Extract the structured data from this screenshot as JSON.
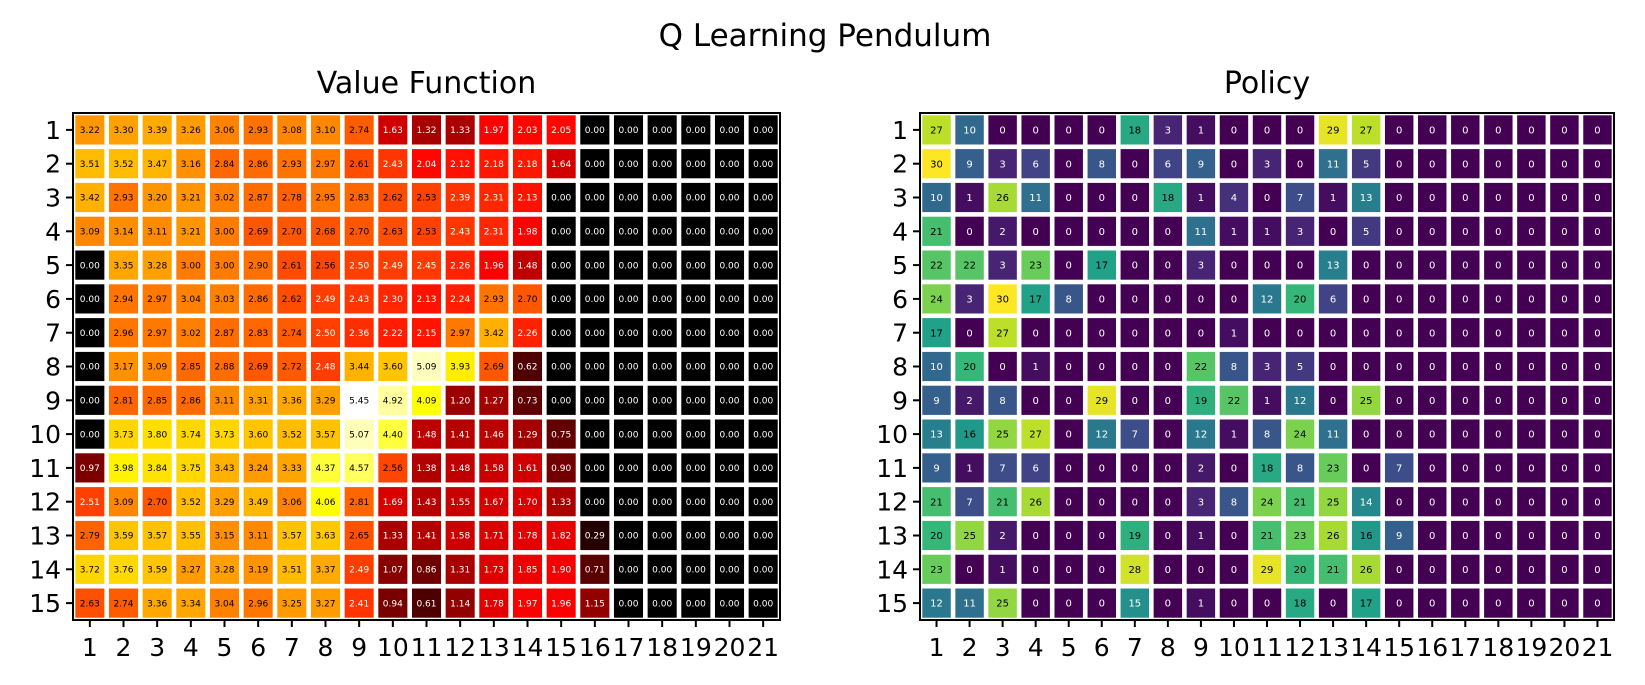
{
  "figure_title": "Q Learning Pendulum",
  "chart_data": [
    {
      "type": "heatmap",
      "title": "Value Function",
      "colormap": "hot",
      "x_tick_labels": [
        "1",
        "2",
        "3",
        "4",
        "5",
        "6",
        "7",
        "8",
        "9",
        "10",
        "11",
        "12",
        "13",
        "14",
        "15",
        "16",
        "17",
        "18",
        "19",
        "20",
        "21"
      ],
      "y_tick_labels": [
        "1",
        "2",
        "3",
        "4",
        "5",
        "6",
        "7",
        "8",
        "9",
        "10",
        "11",
        "12",
        "13",
        "14",
        "15"
      ],
      "value_range": [
        0,
        5.45
      ],
      "cell_label_format": "2dp",
      "values": [
        [
          3.22,
          3.3,
          3.39,
          3.26,
          3.06,
          2.93,
          3.08,
          3.1,
          2.74,
          1.63,
          1.32,
          1.33,
          1.97,
          2.03,
          2.05,
          0,
          0,
          0,
          0,
          0,
          0
        ],
        [
          3.51,
          3.52,
          3.47,
          3.16,
          2.84,
          2.86,
          2.93,
          2.97,
          2.61,
          2.43,
          2.04,
          2.12,
          2.18,
          2.18,
          1.64,
          0,
          0,
          0,
          0,
          0,
          0
        ],
        [
          3.42,
          2.93,
          3.2,
          3.21,
          3.02,
          2.87,
          2.78,
          2.95,
          2.83,
          2.62,
          2.53,
          2.39,
          2.31,
          2.13,
          0,
          0,
          0,
          0,
          0,
          0,
          0
        ],
        [
          3.09,
          3.14,
          3.11,
          3.21,
          3.0,
          2.69,
          2.7,
          2.68,
          2.7,
          2.63,
          2.53,
          2.43,
          2.31,
          1.98,
          0,
          0,
          0,
          0,
          0,
          0,
          0
        ],
        [
          0,
          3.35,
          3.28,
          3.0,
          3.0,
          2.9,
          2.61,
          2.56,
          2.5,
          2.49,
          2.45,
          2.26,
          1.96,
          1.48,
          0,
          0,
          0,
          0,
          0,
          0,
          0
        ],
        [
          0,
          2.94,
          2.97,
          3.04,
          3.03,
          2.86,
          2.62,
          2.49,
          2.43,
          2.3,
          2.13,
          2.24,
          2.93,
          2.7,
          0,
          0,
          0,
          0,
          0,
          0,
          0
        ],
        [
          0,
          2.96,
          2.97,
          3.02,
          2.87,
          2.83,
          2.74,
          2.5,
          2.36,
          2.22,
          2.15,
          2.97,
          3.42,
          2.26,
          0,
          0,
          0,
          0,
          0,
          0,
          0
        ],
        [
          0,
          3.17,
          3.09,
          2.85,
          2.88,
          2.69,
          2.72,
          2.48,
          3.44,
          3.6,
          5.09,
          3.93,
          2.69,
          0.62,
          0,
          0,
          0,
          0,
          0,
          0,
          0
        ],
        [
          0,
          2.81,
          2.85,
          2.86,
          3.11,
          3.31,
          3.36,
          3.29,
          5.45,
          4.92,
          4.09,
          1.2,
          1.27,
          0.73,
          0,
          0,
          0,
          0,
          0,
          0,
          0
        ],
        [
          0,
          3.73,
          3.8,
          3.74,
          3.73,
          3.6,
          3.52,
          3.57,
          5.07,
          4.4,
          1.48,
          1.41,
          1.46,
          1.29,
          0.75,
          0,
          0,
          0,
          0,
          0,
          0
        ],
        [
          0.97,
          3.98,
          3.84,
          3.75,
          3.43,
          3.24,
          3.33,
          4.37,
          4.57,
          2.56,
          1.38,
          1.48,
          1.58,
          1.61,
          0.9,
          0,
          0,
          0,
          0,
          0,
          0
        ],
        [
          2.51,
          3.09,
          2.7,
          3.52,
          3.29,
          3.49,
          3.06,
          4.06,
          2.81,
          1.69,
          1.43,
          1.55,
          1.67,
          1.7,
          1.33,
          0,
          0,
          0,
          0,
          0,
          0
        ],
        [
          2.79,
          3.59,
          3.57,
          3.55,
          3.15,
          3.11,
          3.57,
          3.63,
          2.65,
          1.33,
          1.41,
          1.58,
          1.71,
          1.78,
          1.82,
          0.29,
          0,
          0,
          0,
          0,
          0
        ],
        [
          3.72,
          3.76,
          3.59,
          3.27,
          3.28,
          3.19,
          3.51,
          3.37,
          2.49,
          1.07,
          0.86,
          1.31,
          1.73,
          1.85,
          1.9,
          0.71,
          0,
          0,
          0,
          0,
          0
        ],
        [
          2.63,
          2.74,
          3.36,
          3.34,
          3.04,
          2.96,
          3.25,
          3.27,
          2.41,
          0.94,
          0.61,
          1.14,
          1.78,
          1.97,
          1.96,
          1.15,
          0,
          0,
          0,
          0,
          0
        ]
      ]
    },
    {
      "type": "heatmap",
      "title": "Policy",
      "colormap": "viridis",
      "x_tick_labels": [
        "1",
        "2",
        "3",
        "4",
        "5",
        "6",
        "7",
        "8",
        "9",
        "10",
        "11",
        "12",
        "13",
        "14",
        "15",
        "16",
        "17",
        "18",
        "19",
        "20",
        "21"
      ],
      "y_tick_labels": [
        "1",
        "2",
        "3",
        "4",
        "5",
        "6",
        "7",
        "8",
        "9",
        "10",
        "11",
        "12",
        "13",
        "14",
        "15"
      ],
      "value_range": [
        0,
        30
      ],
      "cell_label_format": "int",
      "values": [
        [
          27,
          10,
          0,
          0,
          0,
          0,
          18,
          3,
          1,
          0,
          0,
          0,
          29,
          27,
          0,
          0,
          0,
          0,
          0,
          0,
          0
        ],
        [
          30,
          9,
          3,
          6,
          0,
          8,
          0,
          6,
          9,
          0,
          3,
          0,
          11,
          5,
          0,
          0,
          0,
          0,
          0,
          0,
          0
        ],
        [
          10,
          1,
          26,
          11,
          0,
          0,
          0,
          18,
          1,
          4,
          0,
          7,
          1,
          13,
          0,
          0,
          0,
          0,
          0,
          0,
          0
        ],
        [
          21,
          0,
          2,
          0,
          0,
          0,
          0,
          0,
          11,
          1,
          1,
          3,
          0,
          5,
          0,
          0,
          0,
          0,
          0,
          0,
          0
        ],
        [
          22,
          22,
          3,
          23,
          0,
          17,
          0,
          0,
          3,
          0,
          0,
          0,
          13,
          0,
          0,
          0,
          0,
          0,
          0,
          0,
          0
        ],
        [
          24,
          3,
          30,
          17,
          8,
          0,
          0,
          0,
          0,
          0,
          12,
          20,
          6,
          0,
          0,
          0,
          0,
          0,
          0,
          0,
          0
        ],
        [
          17,
          0,
          27,
          0,
          0,
          0,
          0,
          0,
          0,
          1,
          0,
          0,
          0,
          0,
          0,
          0,
          0,
          0,
          0,
          0,
          0
        ],
        [
          10,
          20,
          0,
          1,
          0,
          0,
          0,
          0,
          22,
          8,
          3,
          5,
          0,
          0,
          0,
          0,
          0,
          0,
          0,
          0,
          0
        ],
        [
          9,
          2,
          8,
          0,
          0,
          29,
          0,
          0,
          19,
          22,
          1,
          12,
          0,
          25,
          0,
          0,
          0,
          0,
          0,
          0,
          0
        ],
        [
          13,
          16,
          25,
          27,
          0,
          12,
          7,
          0,
          12,
          1,
          8,
          24,
          11,
          0,
          0,
          0,
          0,
          0,
          0,
          0,
          0
        ],
        [
          9,
          1,
          7,
          6,
          0,
          0,
          0,
          0,
          2,
          0,
          18,
          8,
          23,
          0,
          7,
          0,
          0,
          0,
          0,
          0,
          0
        ],
        [
          21,
          7,
          21,
          26,
          0,
          0,
          0,
          0,
          3,
          8,
          24,
          21,
          25,
          14,
          0,
          0,
          0,
          0,
          0,
          0,
          0
        ],
        [
          20,
          25,
          2,
          0,
          0,
          0,
          19,
          0,
          1,
          0,
          21,
          23,
          26,
          16,
          9,
          0,
          0,
          0,
          0,
          0,
          0
        ],
        [
          23,
          0,
          1,
          0,
          0,
          0,
          28,
          0,
          0,
          0,
          29,
          20,
          21,
          26,
          0,
          0,
          0,
          0,
          0,
          0,
          0
        ],
        [
          12,
          11,
          25,
          0,
          0,
          0,
          15,
          0,
          1,
          0,
          0,
          18,
          0,
          17,
          0,
          0,
          0,
          0,
          0,
          0,
          0
        ]
      ]
    }
  ]
}
